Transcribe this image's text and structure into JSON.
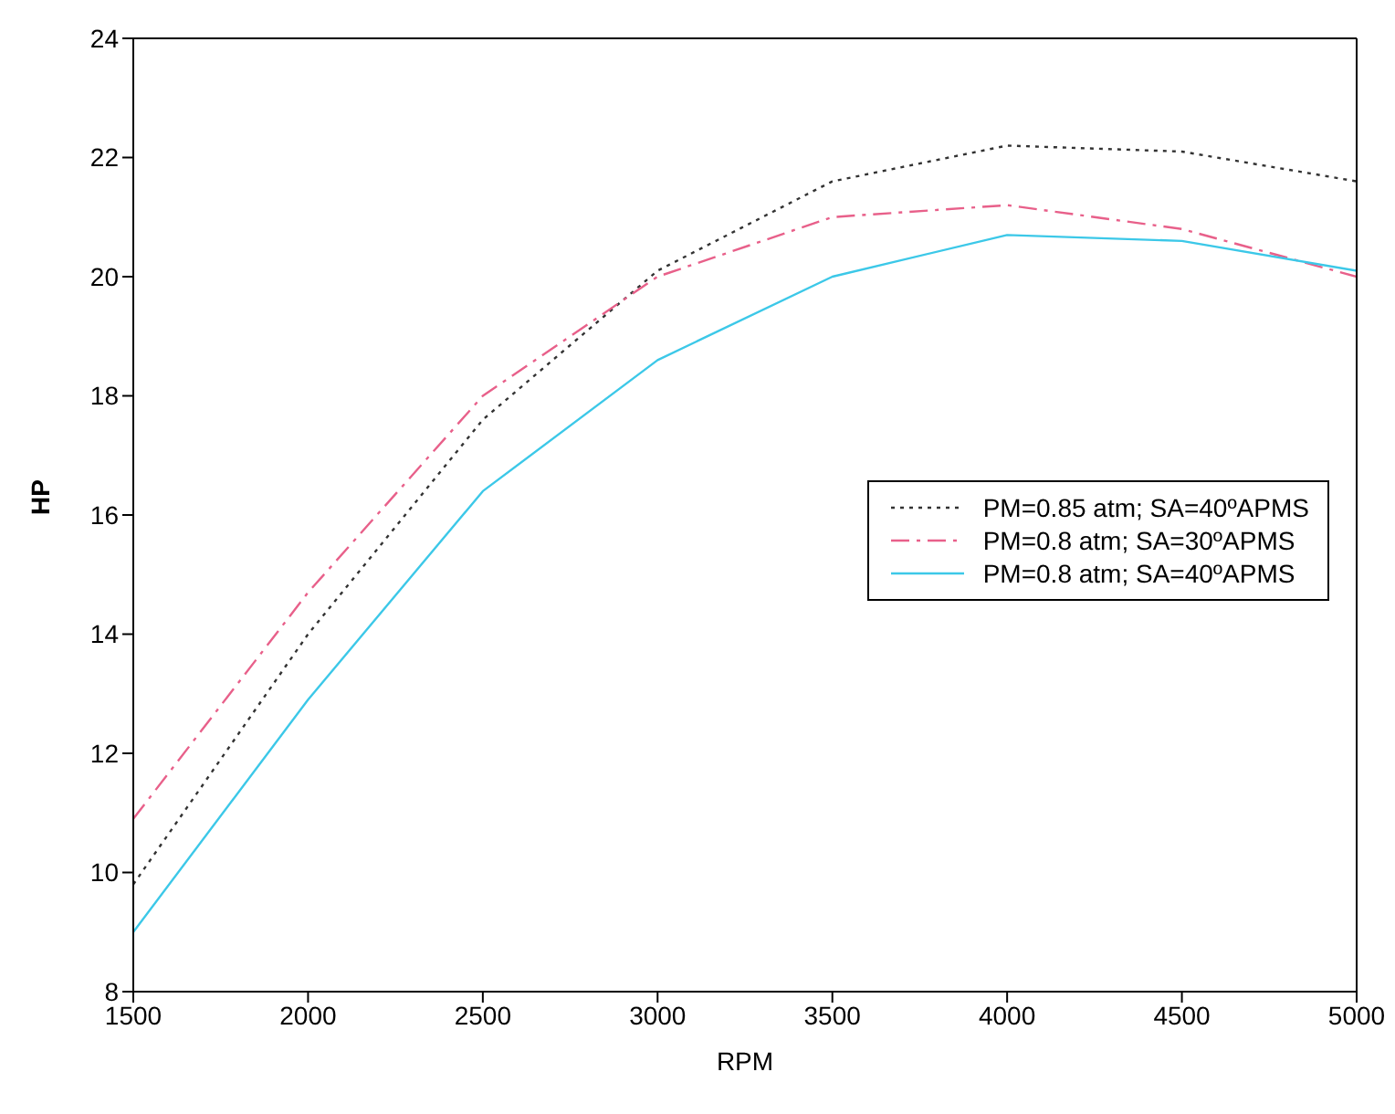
{
  "chart_data": {
    "type": "line",
    "xlabel": "RPM",
    "ylabel": "HP",
    "x": [
      1500,
      2000,
      2500,
      3000,
      3500,
      4000,
      4500,
      5000
    ],
    "xlim": [
      1500,
      5000
    ],
    "xticks": [
      1500,
      2000,
      2500,
      3000,
      3500,
      4000,
      4500,
      5000
    ],
    "ylim": [
      8,
      24
    ],
    "yticks": [
      8,
      10,
      12,
      14,
      16,
      18,
      20,
      22,
      24
    ],
    "grid": false,
    "legend": "right",
    "marker": "none",
    "series": [
      {
        "name": "PM=0.85 atm; SA=40ºAPMS",
        "color": "#333333",
        "line_style": "dotted",
        "values": [
          9.8,
          14.0,
          17.6,
          20.1,
          21.6,
          22.2,
          22.1,
          21.6
        ]
      },
      {
        "name": "PM=0.8 atm; SA=30ºAPMS",
        "color": "#e8608a",
        "line_style": "dashed",
        "values": [
          10.9,
          14.7,
          18.0,
          20.0,
          21.0,
          21.2,
          20.8,
          20.0
        ]
      },
      {
        "name": "PM=0.8 atm; SA=40ºAPMS",
        "color": "#3cc8e8",
        "line_style": "solid",
        "values": [
          9.0,
          12.9,
          16.4,
          18.6,
          20.0,
          20.7,
          20.6,
          20.1
        ]
      }
    ]
  }
}
